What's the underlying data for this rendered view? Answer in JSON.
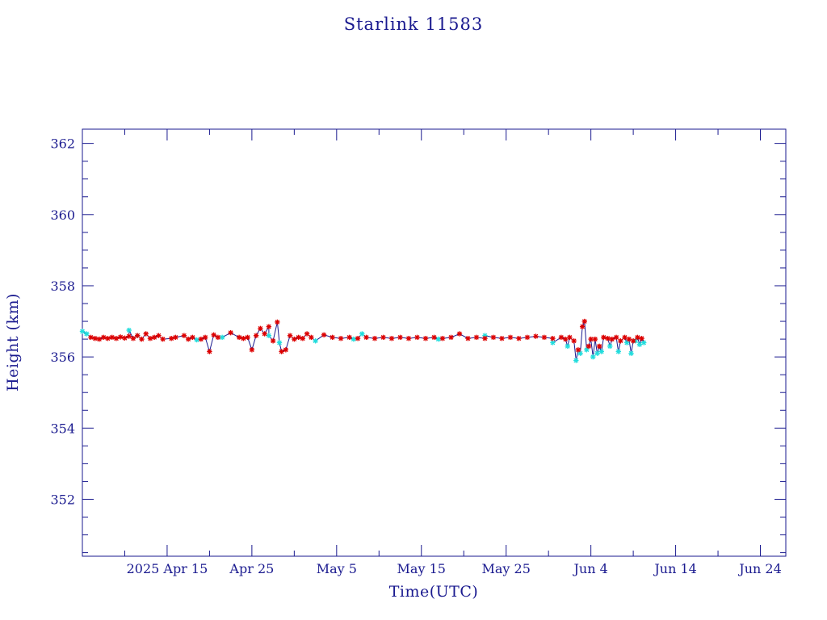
{
  "chart_data": {
    "type": "scatter",
    "title": "Starlink 11583",
    "xlabel": "Time(UTC)",
    "ylabel": "Height (km)",
    "x_range": [
      "2025-04-05",
      "2025-06-27"
    ],
    "ylim": [
      350.4,
      362.4
    ],
    "y_ticks": [
      352,
      354,
      356,
      358,
      360,
      362
    ],
    "x_ticks": [
      {
        "date": "2025-04-15",
        "label": "2025 Apr 15"
      },
      {
        "date": "2025-04-25",
        "label": "Apr 25"
      },
      {
        "date": "2025-05-05",
        "label": "May  5"
      },
      {
        "date": "2025-05-15",
        "label": "May 15"
      },
      {
        "date": "2025-05-25",
        "label": "May 25"
      },
      {
        "date": "2025-06-04",
        "label": "Jun  4"
      },
      {
        "date": "2025-06-14",
        "label": "Jun 14"
      },
      {
        "date": "2025-06-24",
        "label": "Jun 24"
      }
    ],
    "grid": false,
    "colors": {
      "axis": "#1a1a8f",
      "line": "#1a1a8f",
      "series_a": "#dd0000",
      "series_b": "#22dddd"
    },
    "series": [
      {
        "values": [
          [
            "2025-04-06T00:00",
            356.55
          ],
          [
            "2025-04-06T12:00",
            356.52
          ],
          [
            "2025-04-07T00:00",
            356.5
          ],
          [
            "2025-04-07T12:00",
            356.55
          ],
          [
            "2025-04-08T00:00",
            356.52
          ],
          [
            "2025-04-08T12:00",
            356.55
          ],
          [
            "2025-04-09T00:00",
            356.52
          ],
          [
            "2025-04-09T12:00",
            356.56
          ],
          [
            "2025-04-10T00:00",
            356.53
          ],
          [
            "2025-04-10T12:00",
            356.58
          ],
          [
            "2025-04-11T00:00",
            356.52
          ],
          [
            "2025-04-11T12:00",
            356.6
          ],
          [
            "2025-04-12T00:00",
            356.5
          ],
          [
            "2025-04-12T12:00",
            356.65
          ],
          [
            "2025-04-13T00:00",
            356.52
          ],
          [
            "2025-04-13T12:00",
            356.55
          ],
          [
            "2025-04-14T00:00",
            356.6
          ],
          [
            "2025-04-14T12:00",
            356.5
          ],
          [
            "2025-04-15T12:00",
            356.52
          ],
          [
            "2025-04-16T00:00",
            356.55
          ],
          [
            "2025-04-17T00:00",
            356.6
          ],
          [
            "2025-04-17T12:00",
            356.5
          ],
          [
            "2025-04-18T00:00",
            356.55
          ],
          [
            "2025-04-19T00:00",
            356.5
          ],
          [
            "2025-04-19T12:00",
            356.55
          ],
          [
            "2025-04-20T00:00",
            356.15
          ],
          [
            "2025-04-20T12:00",
            356.62
          ],
          [
            "2025-04-21T00:00",
            356.55
          ],
          [
            "2025-04-22T12:00",
            356.68
          ],
          [
            "2025-04-23T12:00",
            356.55
          ],
          [
            "2025-04-24T00:00",
            356.52
          ],
          [
            "2025-04-24T12:00",
            356.55
          ],
          [
            "2025-04-25T00:00",
            356.2
          ],
          [
            "2025-04-25T12:00",
            356.6
          ],
          [
            "2025-04-26T00:00",
            356.8
          ],
          [
            "2025-04-26T12:00",
            356.65
          ],
          [
            "2025-04-27T00:00",
            356.85
          ],
          [
            "2025-04-27T12:00",
            356.45
          ],
          [
            "2025-04-28T00:00",
            356.98
          ],
          [
            "2025-04-28T12:00",
            356.15
          ],
          [
            "2025-04-29T00:00",
            356.2
          ],
          [
            "2025-04-29T12:00",
            356.6
          ],
          [
            "2025-04-30T00:00",
            356.5
          ],
          [
            "2025-04-30T12:00",
            356.55
          ],
          [
            "2025-05-01T00:00",
            356.52
          ],
          [
            "2025-05-01T12:00",
            356.65
          ],
          [
            "2025-05-02T00:00",
            356.55
          ],
          [
            "2025-05-03T12:00",
            356.62
          ],
          [
            "2025-05-04T12:00",
            356.55
          ],
          [
            "2025-05-05T12:00",
            356.52
          ],
          [
            "2025-05-06T12:00",
            356.55
          ],
          [
            "2025-05-07T12:00",
            356.52
          ],
          [
            "2025-05-08T12:00",
            356.55
          ],
          [
            "2025-05-09T12:00",
            356.52
          ],
          [
            "2025-05-10T12:00",
            356.55
          ],
          [
            "2025-05-11T12:00",
            356.52
          ],
          [
            "2025-05-12T12:00",
            356.55
          ],
          [
            "2025-05-13T12:00",
            356.52
          ],
          [
            "2025-05-14T12:00",
            356.55
          ],
          [
            "2025-05-15T12:00",
            356.52
          ],
          [
            "2025-05-16T12:00",
            356.55
          ],
          [
            "2025-05-17T12:00",
            356.52
          ],
          [
            "2025-05-18T12:00",
            356.55
          ],
          [
            "2025-05-19T12:00",
            356.65
          ],
          [
            "2025-05-20T12:00",
            356.52
          ],
          [
            "2025-05-21T12:00",
            356.55
          ],
          [
            "2025-05-22T12:00",
            356.52
          ],
          [
            "2025-05-23T12:00",
            356.55
          ],
          [
            "2025-05-24T12:00",
            356.52
          ],
          [
            "2025-05-25T12:00",
            356.55
          ],
          [
            "2025-05-26T12:00",
            356.52
          ],
          [
            "2025-05-27T12:00",
            356.55
          ],
          [
            "2025-05-28T12:00",
            356.58
          ],
          [
            "2025-05-29T12:00",
            356.55
          ],
          [
            "2025-05-30T12:00",
            356.52
          ],
          [
            "2025-05-31T12:00",
            356.55
          ],
          [
            "2025-06-01T00:00",
            356.5
          ],
          [
            "2025-06-01T12:00",
            356.55
          ],
          [
            "2025-06-02T00:00",
            356.45
          ],
          [
            "2025-06-02T12:00",
            356.2
          ],
          [
            "2025-06-03T00:00",
            356.85
          ],
          [
            "2025-06-03T06:00",
            357.0
          ],
          [
            "2025-06-03T18:00",
            356.3
          ],
          [
            "2025-06-04T00:00",
            356.5
          ],
          [
            "2025-06-04T12:00",
            356.5
          ],
          [
            "2025-06-05T00:00",
            356.3
          ],
          [
            "2025-06-05T12:00",
            356.55
          ],
          [
            "2025-06-06T00:00",
            356.52
          ],
          [
            "2025-06-06T12:00",
            356.5
          ],
          [
            "2025-06-07T00:00",
            356.55
          ],
          [
            "2025-06-07T12:00",
            356.45
          ],
          [
            "2025-06-08T00:00",
            356.55
          ],
          [
            "2025-06-08T12:00",
            356.5
          ],
          [
            "2025-06-09T00:00",
            356.45
          ],
          [
            "2025-06-09T12:00",
            356.55
          ],
          [
            "2025-06-10T00:00",
            356.52
          ]
        ]
      },
      {
        "values": [
          [
            "2025-04-05T00:00",
            356.72
          ],
          [
            "2025-04-05T12:00",
            356.65
          ],
          [
            "2025-04-10T12:00",
            356.75
          ],
          [
            "2025-04-11T12:00",
            356.6
          ],
          [
            "2025-04-18T12:00",
            356.48
          ],
          [
            "2025-04-21T12:00",
            356.55
          ],
          [
            "2025-04-27T00:00",
            356.6
          ],
          [
            "2025-04-28T06:00",
            356.4
          ],
          [
            "2025-05-02T12:00",
            356.45
          ],
          [
            "2025-05-07T00:00",
            356.5
          ],
          [
            "2025-05-08T00:00",
            356.65
          ],
          [
            "2025-05-17T00:00",
            356.5
          ],
          [
            "2025-05-22T12:00",
            356.6
          ],
          [
            "2025-05-30T12:00",
            356.4
          ],
          [
            "2025-06-01T06:00",
            356.3
          ],
          [
            "2025-06-02T06:00",
            355.9
          ],
          [
            "2025-06-02T18:00",
            356.1
          ],
          [
            "2025-06-03T12:00",
            356.2
          ],
          [
            "2025-06-04T06:00",
            356.0
          ],
          [
            "2025-06-04T18:00",
            356.1
          ],
          [
            "2025-06-05T06:00",
            356.15
          ],
          [
            "2025-06-06T06:00",
            356.3
          ],
          [
            "2025-06-07T06:00",
            356.15
          ],
          [
            "2025-06-08T06:00",
            356.4
          ],
          [
            "2025-06-08T18:00",
            356.1
          ],
          [
            "2025-06-09T06:00",
            356.45
          ],
          [
            "2025-06-09T18:00",
            356.35
          ],
          [
            "2025-06-10T06:00",
            356.4
          ]
        ]
      }
    ]
  }
}
